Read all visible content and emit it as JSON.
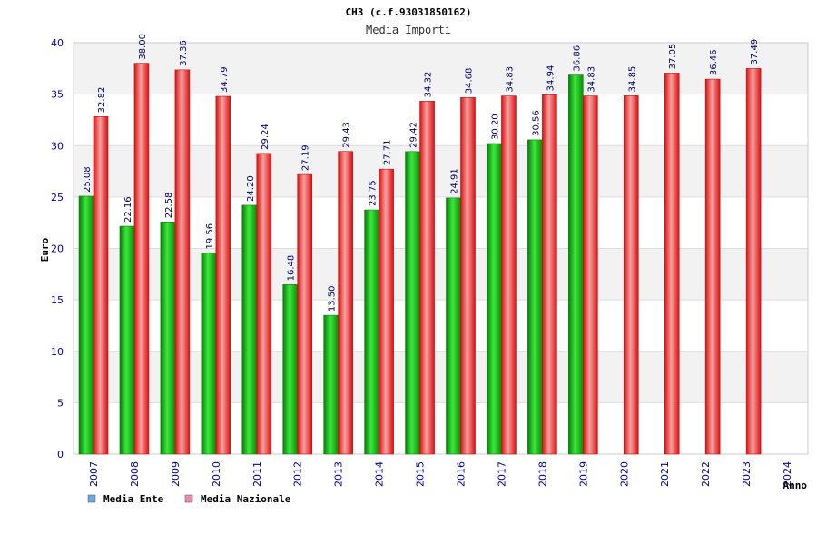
{
  "chart_data": {
    "type": "bar",
    "title": "CH3 (c.f.93031850162)",
    "subtitle": "Media Importi",
    "xlabel": "Anno",
    "ylabel": "Euro",
    "ylim": [
      0,
      40
    ],
    "yticks": [
      0,
      5,
      10,
      15,
      20,
      25,
      30,
      35,
      40
    ],
    "grid": true,
    "legend_position": "bottom-left",
    "categories": [
      "2007",
      "2008",
      "2009",
      "2010",
      "2011",
      "2012",
      "2013",
      "2014",
      "2015",
      "2016",
      "2017",
      "2018",
      "2019",
      "2020",
      "2021",
      "2022",
      "2023",
      "2024"
    ],
    "series": [
      {
        "name": "Media Ente",
        "color": "#18b818",
        "legend_color": "#6aa8e6",
        "values": [
          25.08,
          22.16,
          22.58,
          19.56,
          24.2,
          16.48,
          13.5,
          23.75,
          29.42,
          24.91,
          30.2,
          30.56,
          36.86,
          null,
          null,
          null,
          null,
          null
        ],
        "labels": [
          "25.08",
          "22.16",
          "22.58",
          "19.56",
          "24.20",
          "16.48",
          "13.50",
          "23.75",
          "29.42",
          "24.91",
          "30.20",
          "30.56",
          "36.86",
          null,
          null,
          null,
          null,
          null
        ]
      },
      {
        "name": "Media Nazionale",
        "color": "#e83030",
        "legend_color": "#e68cb0",
        "values": [
          32.82,
          38.0,
          37.36,
          34.79,
          29.24,
          27.19,
          29.43,
          27.71,
          34.32,
          34.68,
          34.83,
          34.94,
          34.83,
          34.85,
          37.05,
          36.46,
          37.49,
          null
        ],
        "labels": [
          "32.82",
          "38.00",
          "37.36",
          "34.79",
          "29.24",
          "27.19",
          "29.43",
          "27.71",
          "34.32",
          "34.68",
          "34.83",
          "34.94",
          "34.83",
          "34.85",
          "37.05",
          "36.46",
          "37.49",
          null
        ]
      }
    ]
  }
}
